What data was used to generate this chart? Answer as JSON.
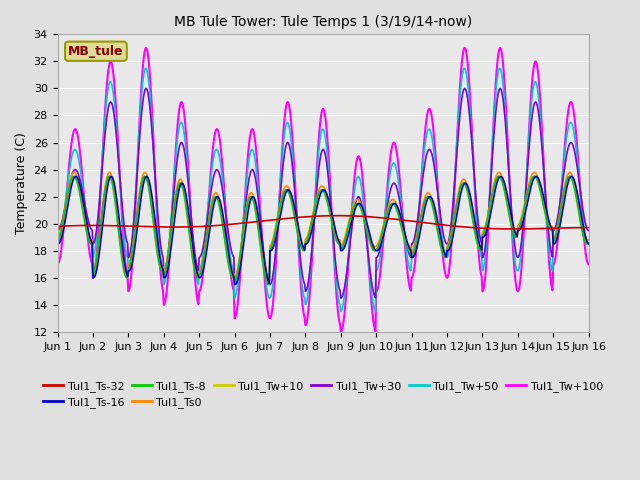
{
  "title": "MB Tule Tower: Tule Temps 1 (3/19/14-now)",
  "ylabel": "Temperature (C)",
  "ylim": [
    12,
    34
  ],
  "yticks": [
    12,
    14,
    16,
    18,
    20,
    22,
    24,
    26,
    28,
    30,
    32,
    34
  ],
  "xlim": [
    0,
    15
  ],
  "xtick_labels": [
    "Jun 1",
    "Jun 2",
    "Jun 3",
    "Jun 4",
    "Jun 5",
    "Jun 6",
    "Jun 7",
    "Jun 8",
    "Jun 9",
    "Jun 10",
    "Jun 11",
    "Jun 12",
    "Jun 13",
    "Jun 14",
    "Jun 15",
    "Jun 16"
  ],
  "bg_color": "#e0e0e0",
  "plot_bg": "#e8e8e8",
  "series": {
    "Tul1_Ts-32": {
      "color": "#cc0000",
      "lw": 1.2,
      "zorder": 5
    },
    "Tul1_Ts-16": {
      "color": "#0000cc",
      "lw": 1.2,
      "zorder": 4
    },
    "Tul1_Ts-8": {
      "color": "#00cc00",
      "lw": 1.2,
      "zorder": 4
    },
    "Tul1_Ts0": {
      "color": "#ff8800",
      "lw": 1.2,
      "zorder": 4
    },
    "Tul1_Tw+10": {
      "color": "#cccc00",
      "lw": 1.2,
      "zorder": 4
    },
    "Tul1_Tw+30": {
      "color": "#8800cc",
      "lw": 1.2,
      "zorder": 3
    },
    "Tul1_Tw+50": {
      "color": "#00cccc",
      "lw": 1.2,
      "zorder": 3
    },
    "Tul1_Tw+100": {
      "color": "#ff00ff",
      "lw": 1.5,
      "zorder": 2
    }
  },
  "legend_label": "MB_tule",
  "legend_box_color": "#dddd99",
  "legend_text_color": "#880000",
  "legend_border_color": "#999900"
}
